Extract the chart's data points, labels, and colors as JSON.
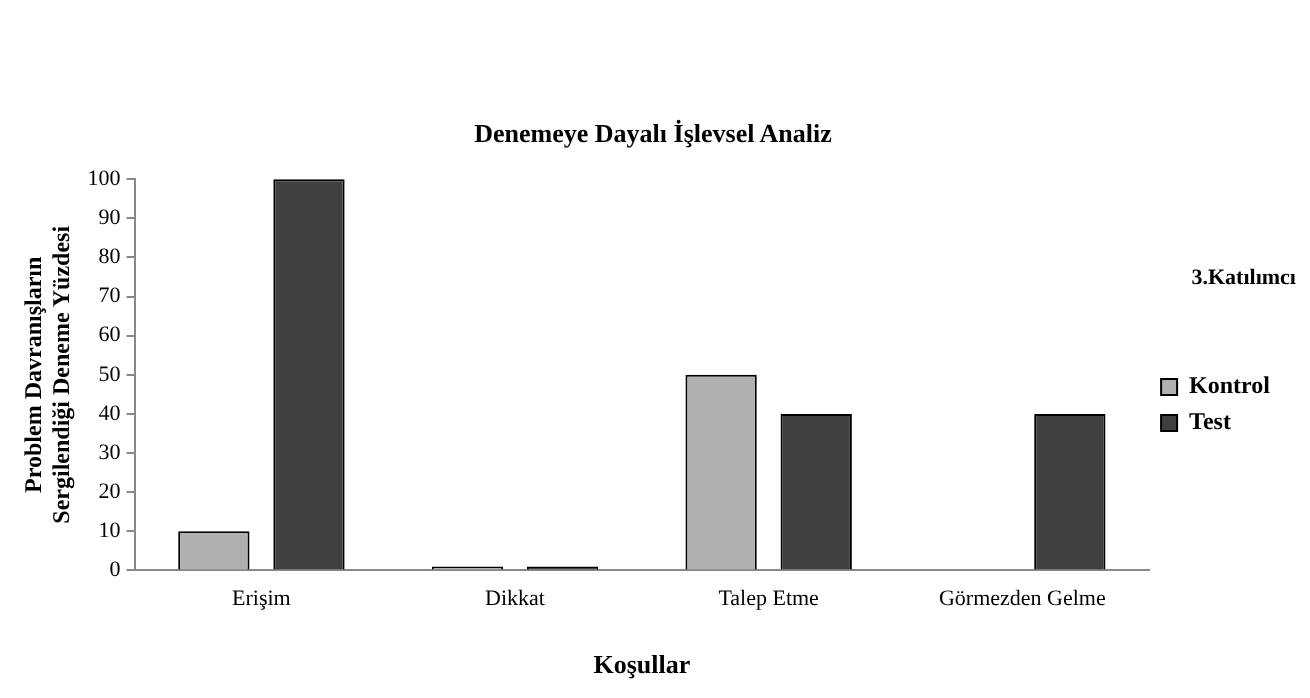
{
  "chart_data": {
    "type": "bar",
    "title": "Denemeye Dayalı İşlevsel Analiz",
    "xlabel": "Koşullar",
    "ylabel": "Problem Davranışların\nSergilendiği Deneme Yüzdesi",
    "categories": [
      "Erişim",
      "Dikkat",
      "Talep Etme",
      "Görmezden Gelme"
    ],
    "series": [
      {
        "name": "Kontrol",
        "color": "#b0b0b0",
        "values": [
          10,
          1,
          50,
          0
        ]
      },
      {
        "name": "Test",
        "color": "#404040",
        "values": [
          100,
          1,
          40,
          40
        ]
      }
    ],
    "ylim": [
      0,
      100
    ],
    "yticks": [
      0,
      10,
      20,
      30,
      40,
      50,
      60,
      70,
      80,
      90,
      100
    ],
    "grid": false,
    "legend": "right",
    "annotations": [
      "3.Katılımcı"
    ]
  }
}
